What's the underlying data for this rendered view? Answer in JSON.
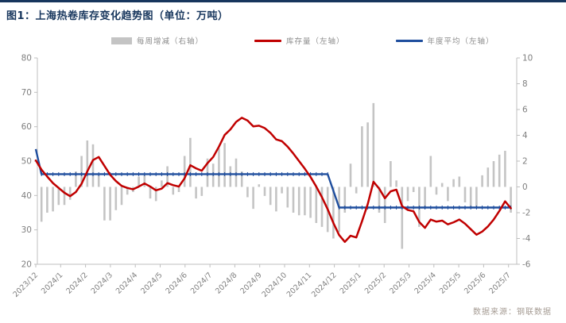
{
  "title": "图1：上海热卷库存变化趋势图（单位：万吨）",
  "source": "数据来源：钢联数据",
  "colors": {
    "accent_navy": "#17365d",
    "inventory_line": "#c00000",
    "annual_avg_line": "#1f4e9e",
    "weekly_bar": "#c4c4c4",
    "axis_line": "#bfbfbf",
    "tick_text": "#7f7f7f"
  },
  "chart_data": {
    "type": "combo",
    "title": "上海热卷库存变化趋势图",
    "unit": "万吨",
    "x_tick_labels": [
      "2023/12",
      "2024/1",
      "2024/2",
      "2024/3",
      "2024/4",
      "2024/5",
      "2024/6",
      "2024/7",
      "2024/8",
      "2024/9",
      "2024/10",
      "2024/11",
      "2024/12",
      "2025/1",
      "2025/2",
      "2025/3",
      "2025/4",
      "2025/5",
      "2025/6",
      "2025/7"
    ],
    "left_axis": {
      "min": 20,
      "max": 80,
      "ticks": [
        20,
        30,
        40,
        50,
        60,
        70,
        80
      ]
    },
    "right_axis": {
      "min": -6,
      "max": 10,
      "ticks": [
        -6,
        -4,
        -2,
        0,
        2,
        4,
        6,
        8,
        10
      ]
    },
    "grid": false,
    "legend_position": "top",
    "series": [
      {
        "name": "每周增减（右轴）",
        "type": "bar",
        "axis": "right",
        "values": [
          null,
          -2.7,
          -2.0,
          -1.9,
          -1.4,
          -1.4,
          -1.0,
          1.2,
          2.4,
          3.6,
          3.3,
          0.9,
          -2.6,
          -2.6,
          -1.8,
          -1.4,
          -0.6,
          -0.4,
          0.8,
          0.9,
          -0.9,
          -1.1,
          0.5,
          1.6,
          -0.6,
          -0.4,
          2.4,
          3.8,
          -0.9,
          -0.7,
          2.2,
          1.8,
          3.0,
          3.4,
          1.6,
          2.2,
          1.2,
          -0.8,
          -1.7,
          0.2,
          -0.7,
          -1.4,
          -1.9,
          -0.5,
          -1.6,
          -2.0,
          -2.2,
          -2.2,
          -2.4,
          -2.8,
          -3.1,
          -3.5,
          -4.0,
          -3.5,
          -2.0,
          1.8,
          -0.5,
          4.7,
          5.0,
          6.5,
          -2.0,
          -2.8,
          2.0,
          0.5,
          -4.8,
          -1.1,
          -0.4,
          -3.1,
          -1.7,
          2.4,
          -0.6,
          0.3,
          -1.1,
          0.6,
          0.8,
          -1.2,
          -1.6,
          -1.6,
          0.9,
          1.5,
          2.0,
          2.5,
          2.8,
          -2.0
        ]
      },
      {
        "name": "库存量（左轴）",
        "type": "line",
        "axis": "left",
        "values": [
          50.2,
          47.5,
          45.5,
          43.6,
          42.2,
          40.8,
          39.8,
          41.0,
          43.4,
          47.0,
          50.3,
          51.2,
          48.6,
          46.0,
          44.2,
          42.8,
          42.2,
          41.8,
          42.6,
          43.5,
          42.6,
          41.5,
          42.0,
          43.6,
          43.0,
          42.6,
          45.0,
          48.8,
          47.9,
          47.2,
          49.4,
          51.2,
          54.2,
          57.6,
          59.2,
          61.4,
          62.6,
          61.8,
          60.1,
          60.3,
          59.6,
          58.2,
          56.3,
          55.8,
          54.2,
          52.2,
          50.0,
          47.8,
          45.4,
          42.6,
          39.5,
          36.0,
          32.0,
          28.5,
          26.5,
          28.3,
          27.8,
          32.5,
          37.5,
          44.0,
          42.0,
          39.2,
          41.2,
          41.7,
          36.9,
          35.8,
          35.4,
          32.3,
          30.6,
          33.0,
          32.4,
          32.7,
          31.6,
          32.2,
          33.0,
          31.8,
          30.2,
          28.6,
          29.5,
          31.0,
          33.0,
          35.5,
          38.3,
          36.3
        ]
      },
      {
        "name": "年度平均（左轴）",
        "type": "line",
        "axis": "left",
        "step_levels": [
          53.5,
          46.2,
          36.5
        ],
        "points": [
          [
            0,
            53.5
          ],
          [
            1,
            46.2
          ],
          [
            51,
            46.2
          ],
          [
            53,
            36.5
          ],
          [
            83,
            36.5
          ]
        ]
      }
    ]
  }
}
